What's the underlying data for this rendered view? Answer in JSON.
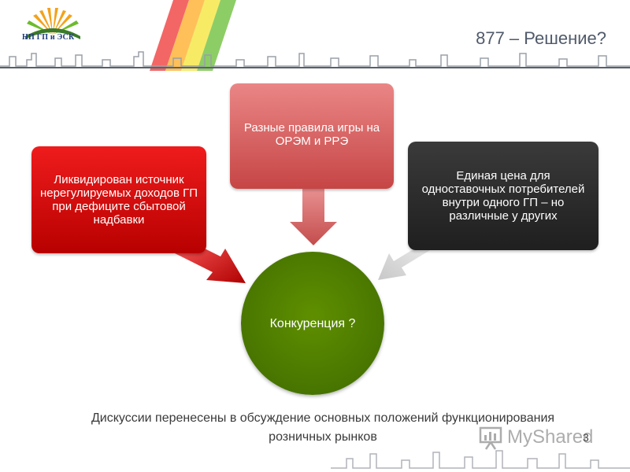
{
  "header": {
    "logo_text": "НП ГП и ЭСК",
    "title": "877 – Решение?"
  },
  "diagram": {
    "center": "Конкуренция ?",
    "left_box": "Ликвидирован источник нерегулируемых доходов ГП при дефиците сбытовой надбавки",
    "top_box": "Разные правила игры на ОРЭМ и РРЭ",
    "right_box": "Единая цена для одноставочных потребителей внутри одного ГП – но различные у других"
  },
  "footer": {
    "text": "Дискуссии перенесены в обсуждение основных положений функционирования розничных рынков",
    "page_number": "3",
    "watermark": "MyShared"
  },
  "colors": {
    "red": "#d10d0d",
    "pink": "#d86060",
    "dark": "#2b2b2b",
    "green": "#4f7c00"
  }
}
